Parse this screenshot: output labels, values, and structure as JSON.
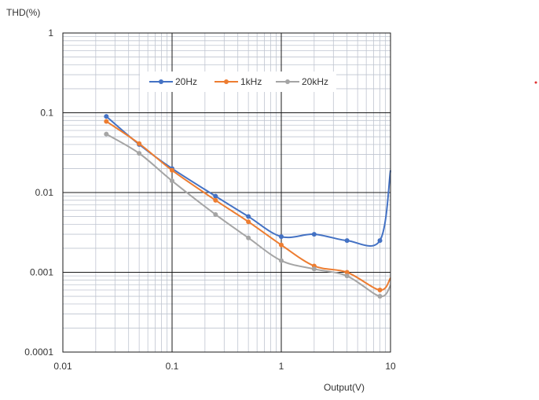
{
  "chart_data": {
    "type": "line",
    "x_scale": "log",
    "y_scale": "log",
    "xlim": [
      0.01,
      10
    ],
    "ylim": [
      0.0001,
      1
    ],
    "grid": true,
    "legend_position": "top",
    "ylabel": "THD(%)",
    "xlabel": "Output(V)",
    "x_ticks": [
      "0.01",
      "0.1",
      "1",
      "10"
    ],
    "y_ticks": [
      "0.0001",
      "0.001",
      "0.01",
      "0.1",
      "1"
    ],
    "series": [
      {
        "name": "20Hz",
        "color": "#4472C4",
        "x": [
          0.025,
          0.05,
          0.1,
          0.25,
          0.5,
          1,
          2,
          4,
          8,
          10
        ],
        "y": [
          0.09,
          0.04,
          0.02,
          0.009,
          0.005,
          0.0028,
          0.003,
          0.0025,
          0.0025,
          0.019
        ]
      },
      {
        "name": "1kHz",
        "color": "#ED7D31",
        "x": [
          0.025,
          0.05,
          0.1,
          0.25,
          0.5,
          1,
          2,
          4,
          8,
          10
        ],
        "y": [
          0.078,
          0.041,
          0.019,
          0.008,
          0.0043,
          0.0022,
          0.0012,
          0.001,
          0.0006,
          0.00085
        ]
      },
      {
        "name": "20kHz",
        "color": "#A5A5A5",
        "x": [
          0.025,
          0.05,
          0.1,
          0.25,
          0.5,
          1,
          2,
          4,
          8,
          10
        ],
        "y": [
          0.054,
          0.031,
          0.014,
          0.0053,
          0.0027,
          0.0014,
          0.0011,
          0.0009,
          0.0005,
          0.00068
        ]
      }
    ]
  }
}
